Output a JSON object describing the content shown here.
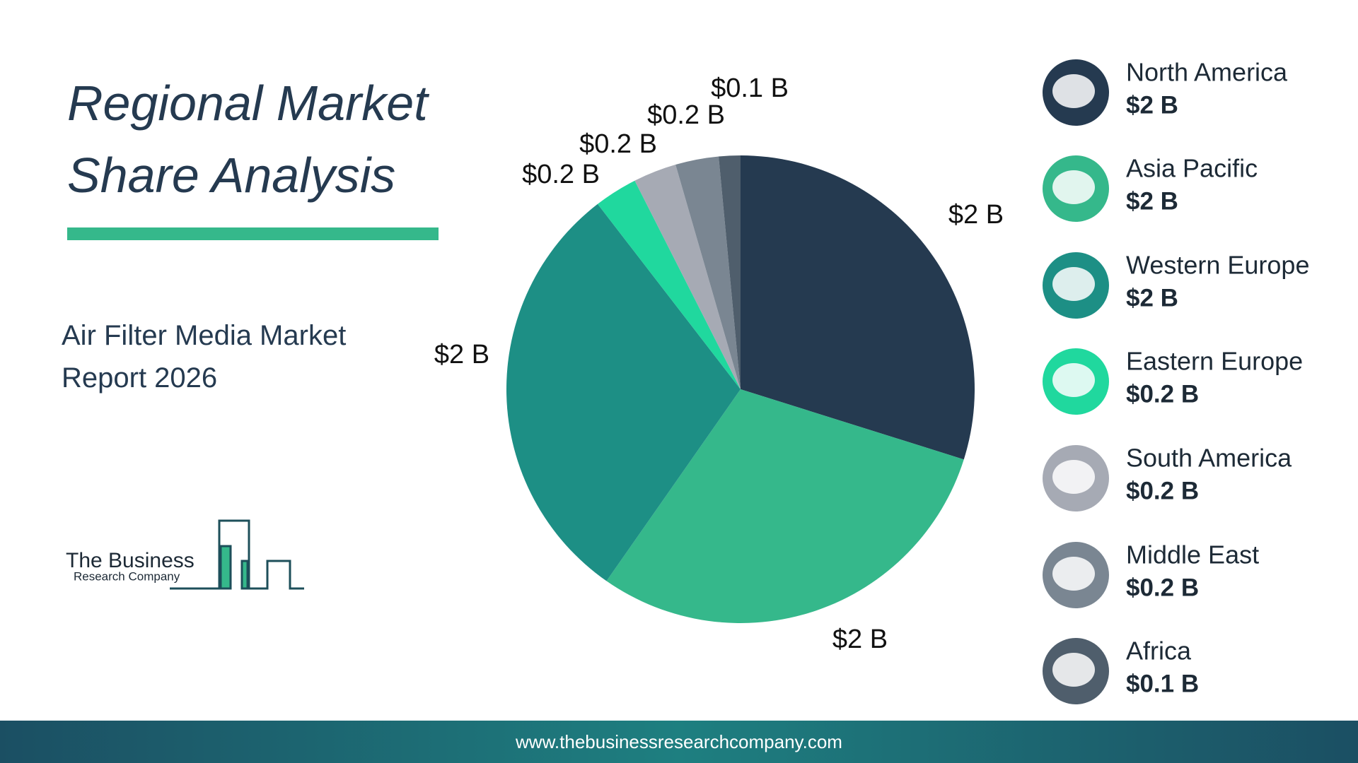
{
  "chart_data": {
    "type": "pie",
    "title": "Regional Market Share Analysis",
    "subtitle": "Air Filter Media Market Report 2026",
    "categories": [
      "North America",
      "Asia Pacific",
      "Western Europe",
      "Eastern Europe",
      "South America",
      "Middle East",
      "Africa"
    ],
    "values": [
      2,
      2,
      2,
      0.2,
      0.2,
      0.2,
      0.1
    ],
    "value_labels": [
      "$2 B",
      "$2 B",
      "$2 B",
      "$0.2 B",
      "$0.2 B",
      "$0.2 B",
      "$0.1 B"
    ],
    "colors": [
      "#253a50",
      "#35b88b",
      "#1d8f85",
      "#20d89e",
      "#a6aab4",
      "#7a8692",
      "#4f5e6c"
    ]
  },
  "logo": {
    "line1": "The Business",
    "line2": "Research Company"
  },
  "footer": {
    "url": "www.thebusinessresearchcompany.com"
  }
}
